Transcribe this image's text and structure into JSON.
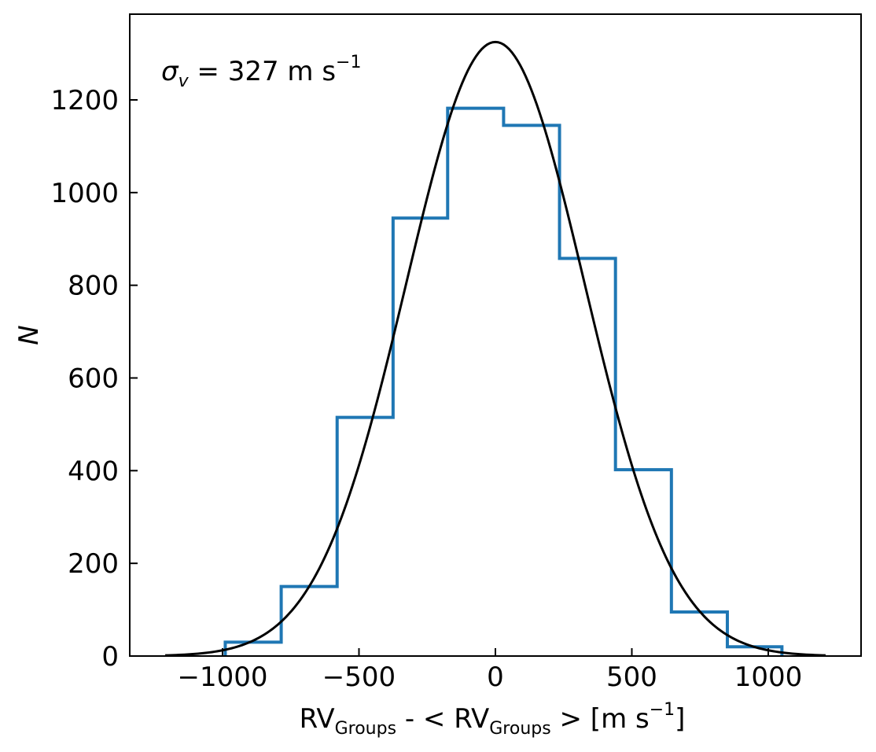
{
  "chart_data": {
    "type": "histogram",
    "xlabel": {
      "main": "RV",
      "sub": "Groups",
      "middle": " - < RV",
      "sub2": "Groups",
      "tail": " > [m s",
      "sup": "−1",
      "end": "]"
    },
    "ylabel": "N",
    "annotation": {
      "sigma": "σ",
      "sub": "v",
      "text": " = 327 m s",
      "sup": "−1"
    },
    "xlim": [
      -1340,
      1340
    ],
    "ylim": [
      0,
      1385
    ],
    "xticks": [
      -1000,
      -500,
      0,
      500,
      1000
    ],
    "xtick_labels": [
      "−1000",
      "−500",
      "0",
      "500",
      "1000"
    ],
    "yticks": [
      0,
      200,
      400,
      600,
      800,
      1000,
      1200
    ],
    "ytick_labels": [
      "0",
      "200",
      "400",
      "600",
      "800",
      "1000",
      "1200"
    ],
    "bins": [
      -990,
      -785,
      -580,
      -375,
      -175,
      30,
      235,
      440,
      645,
      850,
      1050
    ],
    "counts": [
      30,
      150,
      515,
      945,
      1182,
      1145,
      858,
      402,
      95,
      20
    ],
    "gaussian": {
      "amplitude": 1325,
      "mean": 0,
      "sigma": 327,
      "xmin": -1210,
      "xmax": 1210
    },
    "colors": {
      "histogram": "#1f77b4",
      "fit": "#000000"
    },
    "grid": false
  }
}
